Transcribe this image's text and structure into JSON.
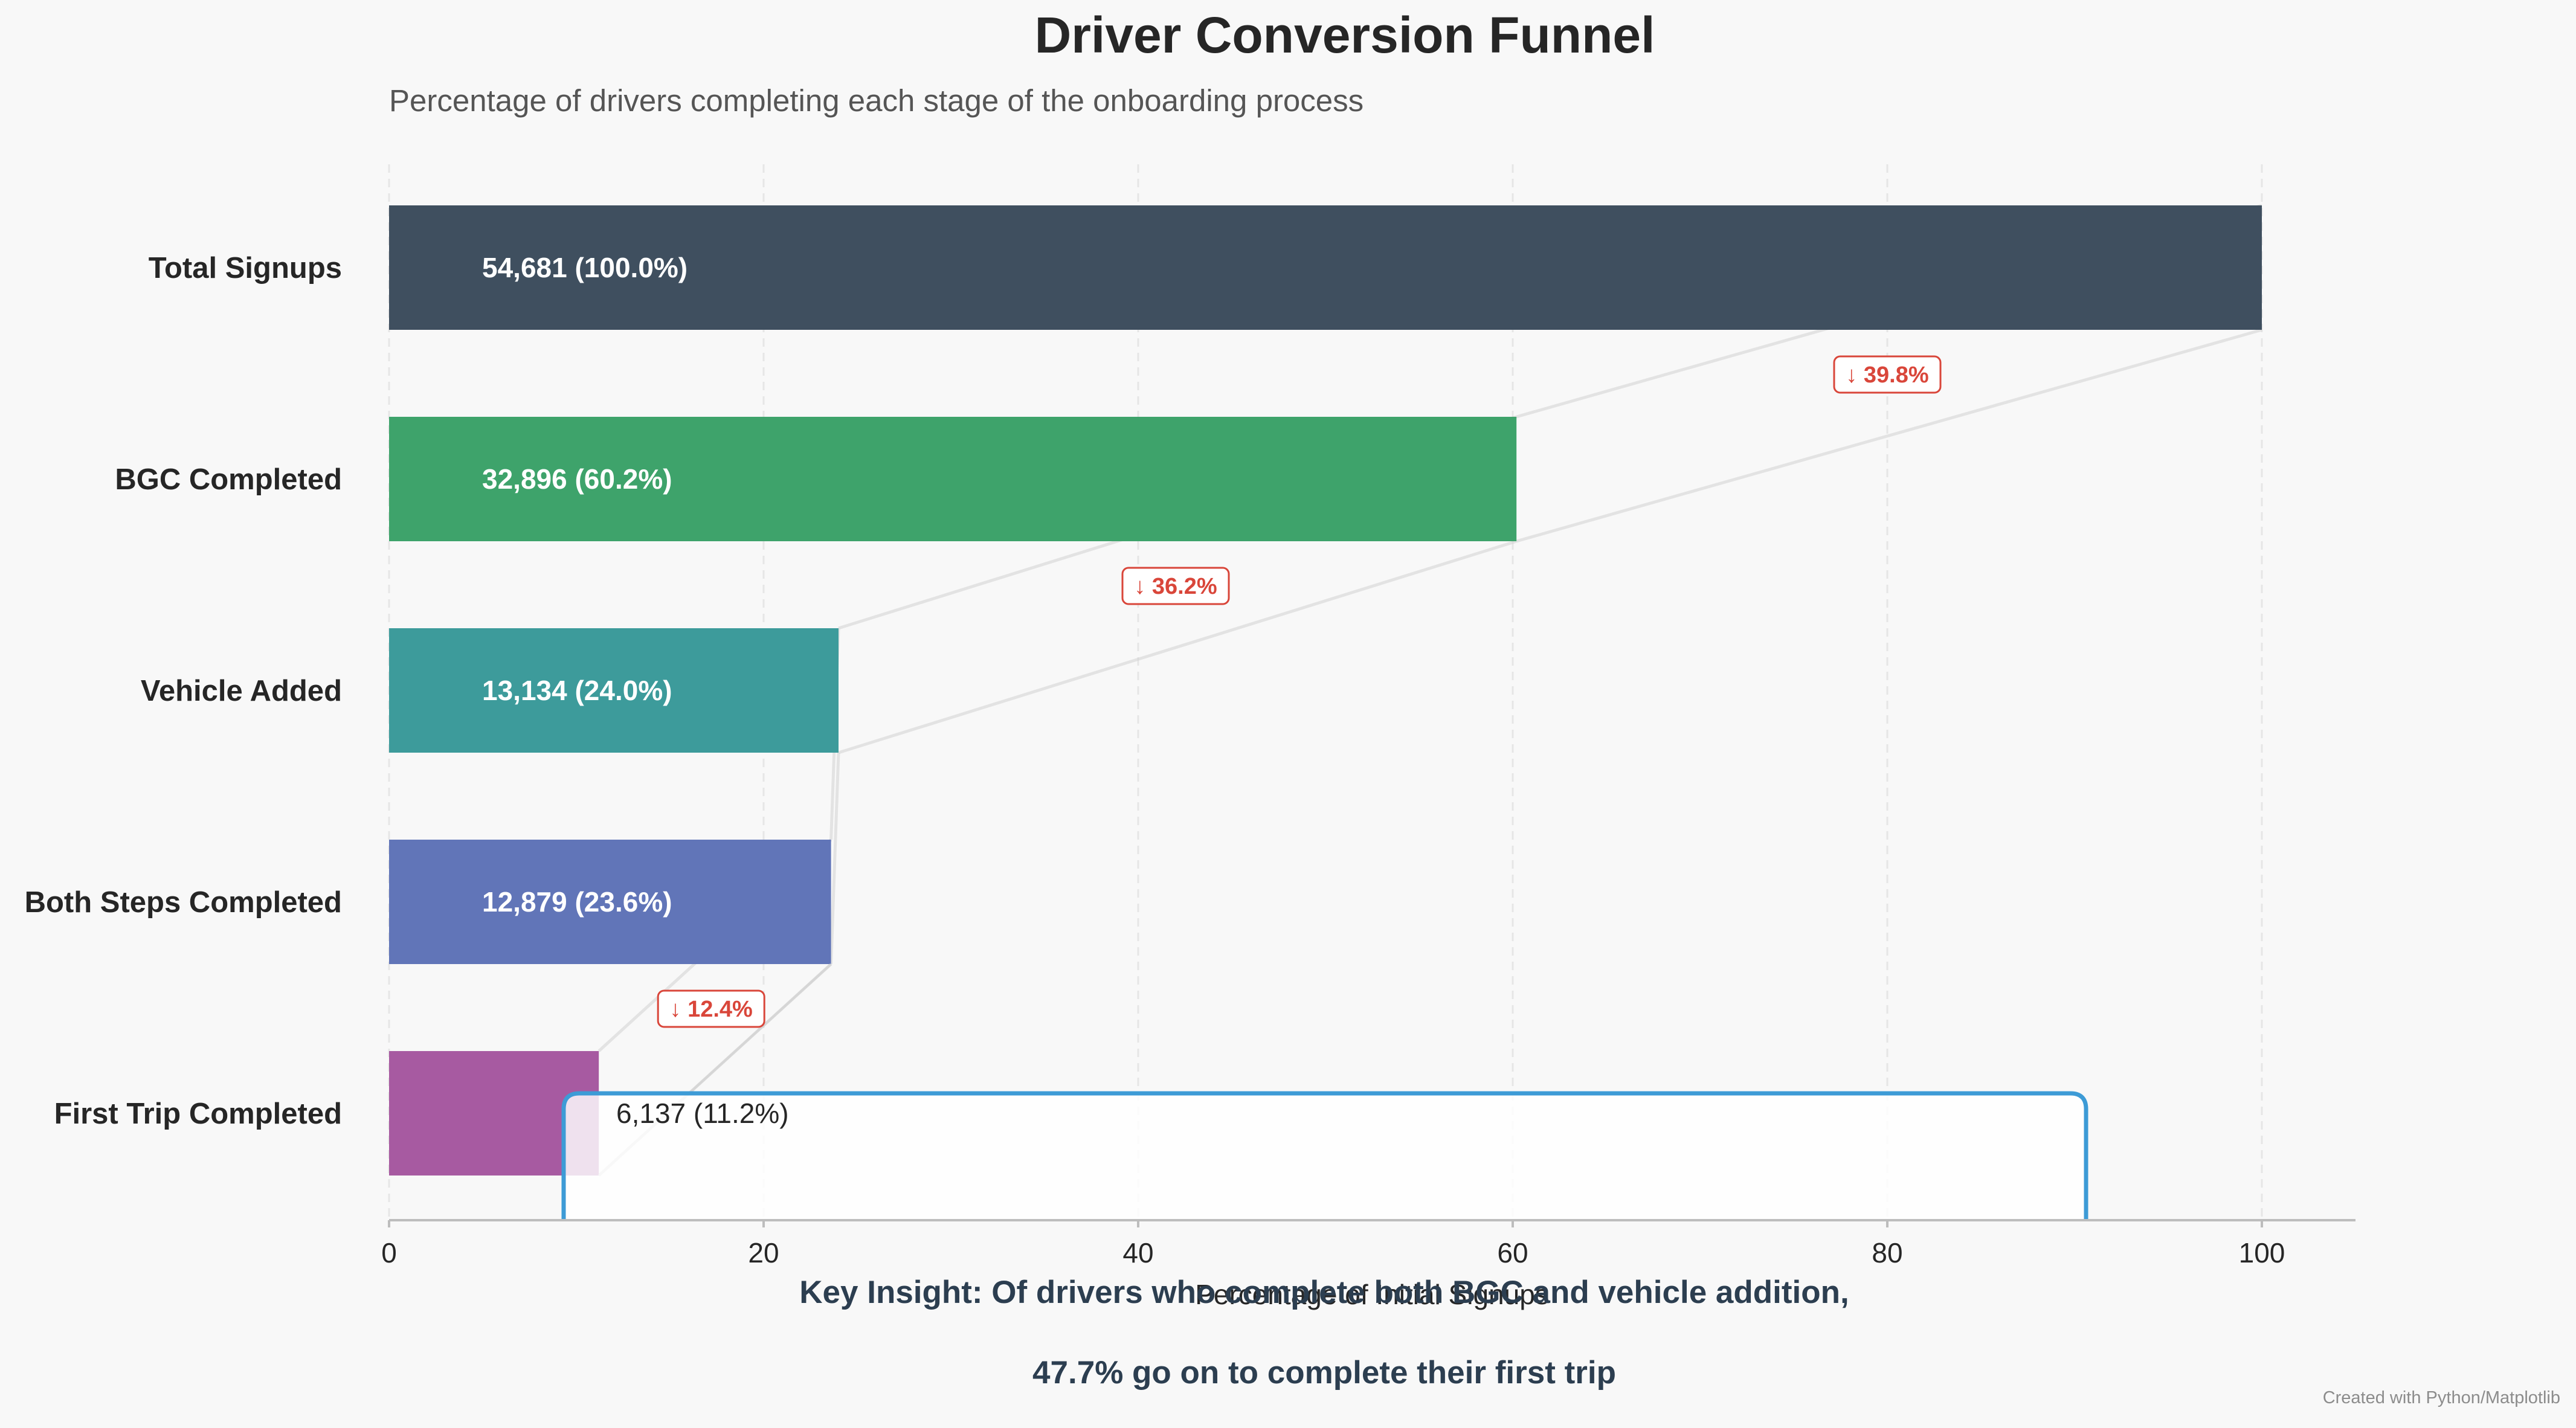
{
  "chart_data": {
    "type": "bar",
    "orientation": "horizontal",
    "title": "Driver Conversion Funnel",
    "subtitle": "Percentage of drivers completing each stage of the onboarding process",
    "xlabel": "Percentage of Initial Signups",
    "ylabel": "",
    "xlim": [
      0,
      105
    ],
    "xticks": [
      0,
      20,
      40,
      60,
      80,
      100
    ],
    "xtick_labels": [
      "0",
      "20",
      "40",
      "60",
      "80",
      "100"
    ],
    "grid": "vertical dashed",
    "categories": [
      "Total Signups",
      "BGC Completed",
      "Vehicle Added",
      "Both Steps Completed",
      "First Trip Completed"
    ],
    "counts": [
      54681,
      32896,
      13134,
      12879,
      6137
    ],
    "values": [
      100.0,
      60.2,
      24.0,
      23.6,
      11.2
    ],
    "value_labels": [
      "54,681 (100.0%)",
      "32,896 (60.2%)",
      "13,134 (24.0%)",
      "12,879 (23.6%)",
      "6,137 (11.2%)"
    ],
    "colors": [
      "#3f4f5f",
      "#3ea36b",
      "#3d9b9b",
      "#6175b8",
      "#a75aa1"
    ],
    "drop_annotations": [
      {
        "between": [
          "Total Signups",
          "BGC Completed"
        ],
        "label": "↓ 39.8%",
        "x": 80
      },
      {
        "between": [
          "BGC Completed",
          "Vehicle Added"
        ],
        "label": "↓ 36.2%",
        "x": 42
      },
      {
        "between": [
          "Both Steps Completed",
          "First Trip Completed"
        ],
        "label": "↓ 12.4%",
        "x": 17.2
      }
    ],
    "insight": {
      "lines": [
        "Key Insight: Of drivers who complete both BGC and vehicle addition,",
        "47.7% go on to complete their first trip"
      ]
    },
    "credit": "Created with Python/Matplotlib"
  },
  "colors": {
    "background": "#f8f8f8",
    "text": "#262626",
    "drop_red": "#d9463a",
    "highlight_blue": "#3d9bd6",
    "insight_navy": "#2c3e50"
  }
}
